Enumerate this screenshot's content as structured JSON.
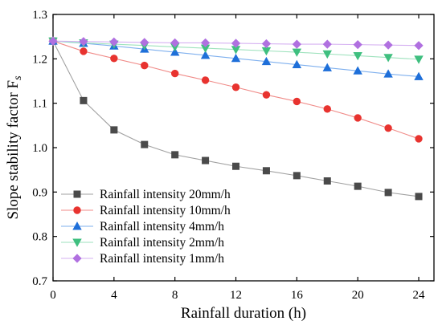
{
  "chart_data": {
    "type": "line",
    "title": "",
    "xlabel": "Rainfall duration (h)",
    "ylabel": "Slope stability factor F",
    "ylabel_subscript": "s",
    "xlim": [
      0,
      25
    ],
    "ylim": [
      0.7,
      1.3
    ],
    "xticks": [
      "0",
      "4",
      "8",
      "12",
      "16",
      "20",
      "24"
    ],
    "yticks": [
      "0.7",
      "0.8",
      "0.9",
      "1.0",
      "1.1",
      "1.2",
      "1.3"
    ],
    "grid": false,
    "legend_position": "bottom-left",
    "x": [
      0,
      2,
      4,
      6,
      8,
      10,
      12,
      14,
      16,
      18,
      20,
      22,
      24
    ],
    "series": [
      {
        "name": "Rainfall intensity 20mm/h",
        "marker": "square",
        "color": "#4a4a4a",
        "line_color": "#a0a0a0",
        "values": [
          1.24,
          1.106,
          1.04,
          1.007,
          0.984,
          0.971,
          0.958,
          0.948,
          0.937,
          0.925,
          0.913,
          0.899,
          0.89
        ]
      },
      {
        "name": "Rainfall intensity 10mm/h",
        "marker": "circle",
        "color": "#e8332f",
        "line_color": "#f08b88",
        "values": [
          1.24,
          1.217,
          1.201,
          1.185,
          1.167,
          1.152,
          1.136,
          1.119,
          1.104,
          1.087,
          1.067,
          1.044,
          1.02
        ]
      },
      {
        "name": "Rainfall intensity 4mm/h",
        "marker": "triangle-up",
        "color": "#1e6fd9",
        "line_color": "#7fb0ee",
        "values": [
          1.24,
          1.235,
          1.229,
          1.222,
          1.215,
          1.208,
          1.201,
          1.194,
          1.187,
          1.18,
          1.173,
          1.166,
          1.16
        ]
      },
      {
        "name": "Rainfall intensity 2mm/h",
        "marker": "triangle-down",
        "color": "#3fbf7f",
        "line_color": "#9ee2bd",
        "values": [
          1.24,
          1.236,
          1.233,
          1.23,
          1.227,
          1.224,
          1.221,
          1.218,
          1.215,
          1.211,
          1.207,
          1.203,
          1.199
        ]
      },
      {
        "name": "Rainfall intensity 1mm/h",
        "marker": "diamond",
        "color": "#b070e0",
        "line_color": "#d6b2f2",
        "values": [
          1.24,
          1.239,
          1.238,
          1.237,
          1.236,
          1.236,
          1.235,
          1.234,
          1.233,
          1.233,
          1.232,
          1.231,
          1.23
        ]
      }
    ]
  }
}
